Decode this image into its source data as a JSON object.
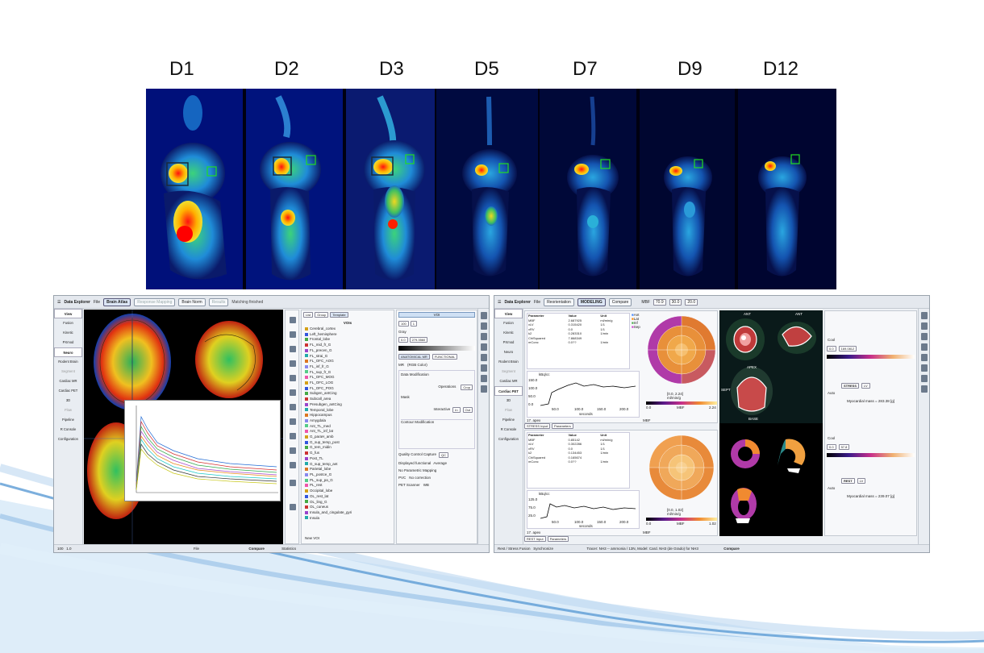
{
  "days": [
    "D1",
    "D2",
    "D3",
    "D5",
    "D7",
    "D9",
    "D12"
  ],
  "colors": {
    "background": "#ffffff",
    "wave": "#6fa8dc",
    "roi_green": "#22dd22"
  },
  "left_app": {
    "menu_icon": "hamburger-icon",
    "app_title": "Data Explorer",
    "file_menu": "File",
    "buttons": [
      "Brain Atlas",
      "Response Mapping",
      "Brain Norm",
      "Results"
    ],
    "status_message": "Matching finished",
    "nav": [
      "View",
      "Fusion",
      "Kinetic",
      "PXmod",
      "Neuro",
      "Rodent Brain",
      "Segment",
      "Cardiac MR",
      "Cardiac PET",
      "3D",
      "Flow",
      "Pipeline",
      "R Console",
      "Configuration"
    ],
    "voi_tabs": [
      "List",
      "Group",
      "Template"
    ],
    "voi_header": "VOIs",
    "voi_tree": [
      "Cerebral_cortex",
      "Left_hemisphere",
      "Frontal_lobe",
      "FL_mid_fr_G",
      "FL_precen_G",
      "FL_strai_G",
      "FL_OFC_AOG",
      "FL_inf_fr_G",
      "FL_sup_fr_G",
      "FL_OFC_MOG",
      "FL_OFC_LOG",
      "FL_OFC_POG",
      "Subgen_antCing",
      "Subcall_area",
      "Presubgen_antCing",
      "Temporal_lobe",
      "Hippocampus",
      "Amygdala",
      "Ant_TL_med",
      "Ant_TL_inf_lat",
      "G_paraH_amb",
      "G_sup_temp_post",
      "G_tem_midin",
      "G_fus",
      "Post_TL",
      "G_sup_temp_ant",
      "Parietal_lobe",
      "PL_postce_G",
      "PL_sup_pa_G",
      "PL_rest",
      "Occipital_lobe",
      "OL_rest_lat",
      "OL_ling_G",
      "OL_cuneus",
      "Insula_and_cingulate_gyri",
      "Insula"
    ],
    "new_voi": "New VOI",
    "ctrl_tab": "VOI",
    "threshold_values": [
      "100",
      "1",
      "0.0",
      "279.3560"
    ],
    "colormap": "Gray",
    "anatomical_mr": "ANATOMICAL MR",
    "functional": "FUNCTIONAL",
    "mr_label": "MR",
    "rgb_color": "(RGB Color)",
    "data_modification": "Data Modification",
    "operations_label": "Operations",
    "crop_label": "Crop",
    "mask_label": "Mask",
    "interactive_label": "Interactive",
    "in_label": "In",
    "out_label": "Out",
    "contour_modification": "Contour Modification",
    "quality_control_capture": "Quality Control Capture",
    "qc_label": "QC",
    "displayed_functional": "Displayed functional",
    "average": "Average",
    "no_parametric_mapping": "No Parametric Mapping",
    "pvc": "PVC",
    "no_correction": "No correction",
    "pet_scanner": "PET Scanner",
    "wb": "WB",
    "compare": "Compare",
    "statistics": "Statistics",
    "zoom_value": "100",
    "zoom_field": "1.0",
    "file_label": "File"
  },
  "right_app": {
    "app_title": "Data Explorer",
    "file_menu": "File",
    "buttons": [
      "Reorientation",
      "MODELING",
      "Compare"
    ],
    "mbf_label": "MBF",
    "fields": [
      "70.9",
      "30.0",
      "20.0"
    ],
    "nav": [
      "View",
      "Fusion",
      "Kinetic",
      "PXmod",
      "Neuro",
      "Rodent Brain",
      "Segment",
      "Cardiac MR",
      "Cardiac PET",
      "3D",
      "Flow",
      "Pipeline",
      "R Console",
      "Configuration"
    ],
    "table_headers": [
      "Parameter",
      "Value",
      "Unit"
    ],
    "stress_params": [
      [
        "MBF",
        "2.687925",
        "ml/min/g"
      ],
      [
        "vLV",
        "0.315420",
        "1/1"
      ],
      [
        "vRV",
        "0.0",
        "1/1"
      ],
      [
        "k2",
        "0.283310",
        "1/min"
      ],
      [
        "ChiSquared",
        "7.868349",
        ""
      ],
      [
        "mConc",
        "0.0??",
        "1/min"
      ]
    ],
    "rest_params": [
      [
        "MBF",
        "0.85142",
        "ml/min/g"
      ],
      [
        "vLV",
        "0.302286",
        "1/1"
      ],
      [
        "vRV",
        "0.0",
        "1/1"
      ],
      [
        "k2",
        "0.134453",
        "1/min"
      ],
      [
        "ChiSquared",
        "0.165674",
        ""
      ],
      [
        "mConc",
        "0.0??",
        "1/min"
      ]
    ],
    "legend_items": [
      "Ant",
      "Lat",
      "Inf",
      "Sep"
    ],
    "stress_polar": {
      "value": "[0.0, 2.24]",
      "unit": "ml/min/g",
      "min": "0.0",
      "max": "2.24",
      "axis": "MBF"
    },
    "rest_polar": {
      "value": "[0.0, 1.02]",
      "unit": "ml/min/g",
      "min": "0.0",
      "max": "1.02",
      "axis": "MBF"
    },
    "stress_curve": {
      "ylabel": "kBq/cc",
      "yticks": [
        "150.0",
        "100.0",
        "50.0",
        "0.0"
      ],
      "xticks": [
        "50.0",
        "100.0",
        "150.0",
        "200.0"
      ],
      "xlabel": "seconds"
    },
    "rest_curve": {
      "ylabel": "kBq/cc",
      "yticks": [
        "125.0",
        "75.0",
        "25.0"
      ],
      "xticks": [
        "50.0",
        "100.0",
        "150.0",
        "200.0"
      ],
      "xlabel": "seconds"
    },
    "segment_label": "17. apex",
    "mbf_select": "MBF",
    "stress_tabs": [
      "STRESS Input",
      "Parameters"
    ],
    "rest_tabs": [
      "REST Input",
      "Parameters"
    ],
    "view_labels": [
      "ANT",
      "ANT",
      "APEX",
      "SEPT",
      "BASE"
    ],
    "cool_label": "Cool",
    "cool_values": [
      "0.0",
      "169.0812"
    ],
    "cool_values_rest": [
      "0.0",
      "57.8"
    ],
    "stress_button": "STRESS",
    "rest_button": "REST",
    "lv_button": "LV",
    "auto_label": "Auto",
    "stress_mass": "Myocardial mass = 283.38 [g]",
    "rest_mass": "Myocardial mass = 239.07 [g]",
    "footer_left": "Rest / Stress Fusion",
    "synchronize": "Synchronize",
    "tracer_line": "Tracer: NH3 -- ammonia / 13N, Model: Card. NH3 (de Grado) for NH3",
    "compare": "Compare"
  }
}
